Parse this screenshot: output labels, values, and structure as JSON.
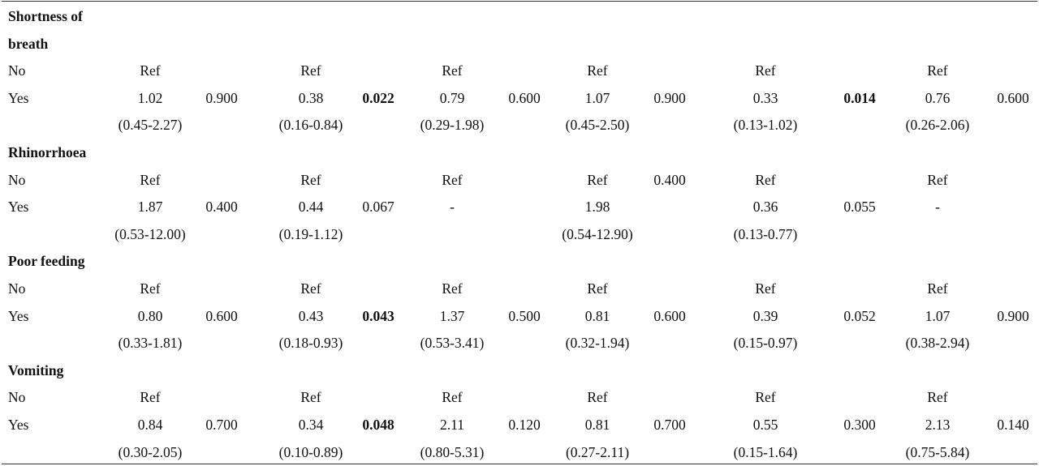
{
  "sections": [
    {
      "title_lines": [
        "Shortness  of",
        "breath"
      ],
      "rows": [
        {
          "label": "No",
          "c1": "Ref",
          "p1": "",
          "c2": "Ref",
          "p2": "",
          "c3": "Ref",
          "p3": "",
          "c4": "Ref",
          "p4": "",
          "c5": "Ref",
          "p5": "",
          "c6": "Ref",
          "p6": ""
        },
        {
          "label": "Yes",
          "c1": "1.02",
          "p1": "0.900",
          "c2": "0.38",
          "p2": "0.022",
          "c3": "0.79",
          "p3": "0.600",
          "c4": "1.07",
          "p4": "0.900",
          "c5": "0.33",
          "p5": "0.014",
          "c6": "0.76",
          "p6": "0.600"
        },
        {
          "label": "",
          "c1": "(0.45-2.27)",
          "p1": "",
          "c2": "(0.16-0.84)",
          "p2": "",
          "c3": "(0.29-1.98)",
          "p3": "",
          "c4": "(0.45-2.50)",
          "p4": "",
          "c5": "(0.13-1.02)",
          "p5": "",
          "c6": "(0.26-2.06)",
          "p6": ""
        }
      ]
    },
    {
      "title_lines": [
        "Rhinorrhoea"
      ],
      "rows": [
        {
          "label": "No",
          "c1": "Ref",
          "p1": "",
          "c2": "Ref",
          "p2": "",
          "c3": "Ref",
          "p3": "",
          "c4": "Ref",
          "p4": "0.400",
          "c5": "Ref",
          "p5": "",
          "c6": "Ref",
          "p6": ""
        },
        {
          "label": "Yes",
          "c1": "1.87",
          "p1": "0.400",
          "c2": "0.44",
          "p2": "0.067",
          "c3": "-",
          "p3": "",
          "c4": "1.98",
          "p4": "",
          "c5": "0.36",
          "p5": "0.055",
          "c6": "-",
          "p6": ""
        },
        {
          "label": "",
          "c1": "(0.53-12.00)",
          "p1": "",
          "c2": "(0.19-1.12)",
          "p2": "",
          "c3": "",
          "p3": "",
          "c4": "(0.54-12.90)",
          "p4": "",
          "c5": "(0.13-0.77)",
          "p5": "",
          "c6": "",
          "p6": ""
        }
      ]
    },
    {
      "title_lines": [
        "Poor feeding"
      ],
      "rows": [
        {
          "label": "No",
          "c1": "Ref",
          "p1": "",
          "c2": "Ref",
          "p2": "",
          "c3": "Ref",
          "p3": "",
          "c4": "Ref",
          "p4": "",
          "c5": "Ref",
          "p5": "",
          "c6": "Ref",
          "p6": ""
        },
        {
          "label": "Yes",
          "c1": "0.80",
          "p1": "0.600",
          "c2": "0.43",
          "p2": "0.043",
          "c3": "1.37",
          "p3": "0.500",
          "c4": "0.81",
          "p4": "0.600",
          "c5": "0.39",
          "p5": "0.052",
          "c6": "1.07",
          "p6": "0.900"
        },
        {
          "label": "",
          "c1": "(0.33-1.81)",
          "p1": "",
          "c2": "(0.18-0.93)",
          "p2": "",
          "c3": "(0.53-3.41)",
          "p3": "",
          "c4": "(0.32-1.94)",
          "p4": "",
          "c5": "(0.15-0.97)",
          "p5": "",
          "c6": "(0.38-2.94)",
          "p6": ""
        }
      ]
    },
    {
      "title_lines": [
        "Vomiting"
      ],
      "rows": [
        {
          "label": "No",
          "c1": "Ref",
          "p1": "",
          "c2": "Ref",
          "p2": "",
          "c3": "Ref",
          "p3": "",
          "c4": "Ref",
          "p4": "",
          "c5": "Ref",
          "p5": "",
          "c6": "Ref",
          "p6": ""
        },
        {
          "label": "Yes",
          "c1": "0.84",
          "p1": "0.700",
          "c2": "0.34",
          "p2": "0.048",
          "c3": "2.11",
          "p3": "0.120",
          "c4": "0.81",
          "p4": "0.700",
          "c5": "0.55",
          "p5": "0.300",
          "c6": "2.13",
          "p6": "0.140"
        },
        {
          "label": "",
          "c1": "(0.30-2.05)",
          "p1": "",
          "c2": "(0.10-0.89)",
          "p2": "",
          "c3": "(0.80-5.31)",
          "p3": "",
          "c4": "(0.27-2.11)",
          "p4": "",
          "c5": "(0.15-1.64)",
          "p5": "",
          "c6": "(0.75-5.84)",
          "p6": ""
        }
      ]
    }
  ],
  "bold_values": [
    "0.022",
    "0.014",
    "0.043",
    "0.048"
  ]
}
